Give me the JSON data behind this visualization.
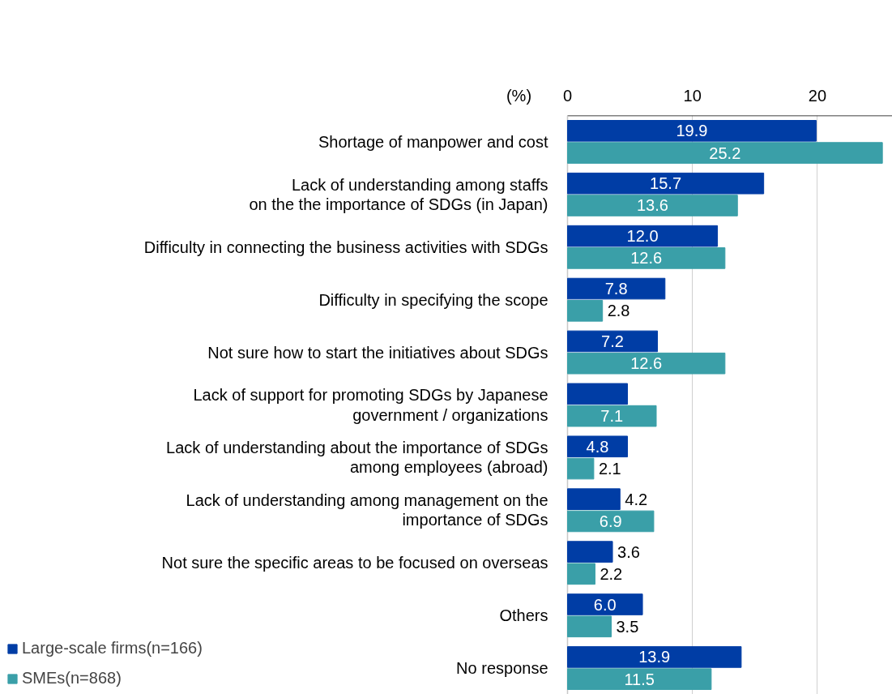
{
  "chart_data": {
    "type": "bar",
    "orientation": "horizontal",
    "xlabel": "(%)",
    "categories": [
      "Shortage of manpower and cost",
      "Lack of understanding among staffs\non the the importance of SDGs (in Japan)",
      "Difficulty in connecting the business activities with SDGs",
      "Difficulty in specifying the scope",
      "Not sure how to start the initiatives about SDGs",
      "Lack of support for promoting SDGs by Japanese\ngovernment / organizations",
      "Lack of understanding about the importance of SDGs\namong employees (abroad)",
      "Lack of understanding among management on the\nimportance of SDGs",
      "Not sure the specific areas to be focused on overseas",
      "Others",
      "No response"
    ],
    "series": [
      {
        "name": "Large-scale firms(n=166)",
        "color": "#003da5",
        "values": [
          19.9,
          15.7,
          12.0,
          7.8,
          7.2,
          4.8,
          4.8,
          4.2,
          3.6,
          6.0,
          13.9
        ],
        "value_labels": [
          "19.9",
          "15.7",
          "12.0",
          "7.8",
          "7.2",
          null,
          "4.8",
          "4.2",
          "3.6",
          "6.0",
          "13.9"
        ]
      },
      {
        "name": "SMEs(n=868)",
        "color": "#3a9fa8",
        "values": [
          25.2,
          13.6,
          12.6,
          2.8,
          12.6,
          7.1,
          2.1,
          6.9,
          2.2,
          3.5,
          11.5
        ],
        "value_labels": [
          "25.2",
          "13.6",
          "12.6",
          "2.8",
          "12.6",
          "7.1",
          "2.1",
          "6.9",
          "2.2",
          "3.5",
          "11.5"
        ]
      }
    ],
    "xlim": [
      0,
      26
    ],
    "xticks": [
      0,
      10,
      20
    ],
    "grid": "x",
    "legend": "bottom left"
  }
}
